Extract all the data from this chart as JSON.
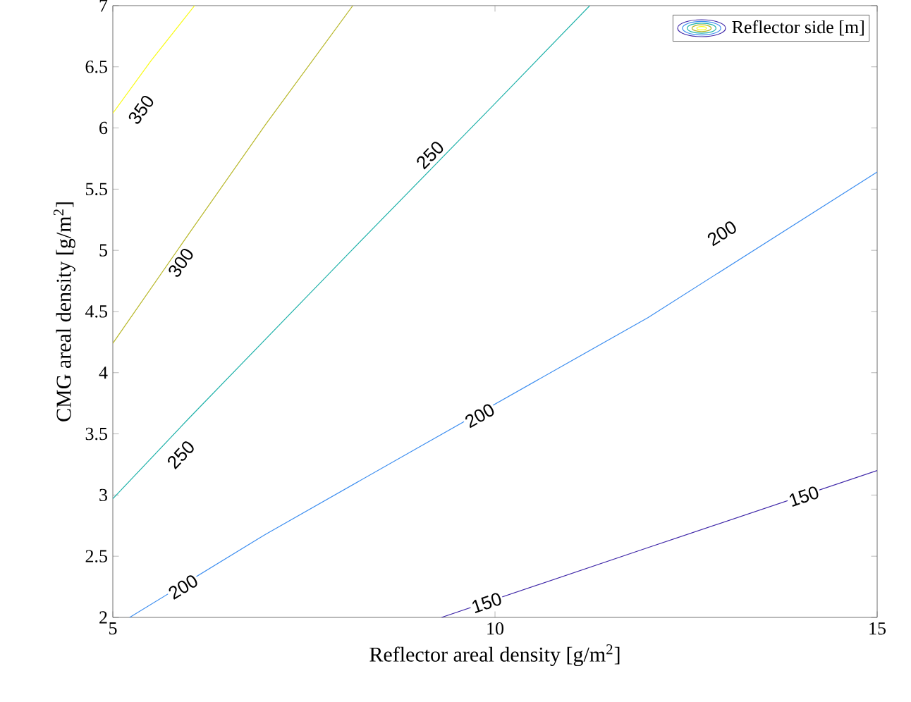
{
  "chart_data": {
    "type": "line",
    "xlabel": "Reflector areal density [g/m$^{2}$]",
    "ylabel": "CMG areal density [g/m$^{2}$]",
    "legend_title": "Reflector side [m]",
    "grid": false,
    "xlim": [
      5,
      15
    ],
    "xticks": [
      5,
      10,
      15
    ],
    "ylim": [
      2,
      7
    ],
    "yticks": [
      2,
      2.5,
      3,
      3.5,
      4,
      4.5,
      5,
      5.5,
      6,
      6.5,
      7
    ],
    "series": [
      {
        "color": "#3e26a8",
        "x": [
          9.3,
          12,
          15
        ],
        "values": [
          2,
          2.57,
          3.2
        ]
      },
      {
        "color": "#3d8ef0",
        "x": [
          5.22,
          7,
          9,
          12,
          15
        ],
        "values": [
          2,
          2.68,
          3.39,
          4.45,
          5.64
        ]
      },
      {
        "color": "#20b2aa",
        "x": [
          5,
          6,
          8,
          10,
          11.24
        ],
        "values": [
          2.97,
          3.63,
          4.92,
          6.2,
          7
        ]
      },
      {
        "color": "#b8b82a",
        "x": [
          5,
          6,
          7,
          8.14
        ],
        "values": [
          4.24,
          5.14,
          6.03,
          7
        ]
      },
      {
        "color": "#f9fb15",
        "x": [
          5,
          5.5,
          6.07
        ],
        "values": [
          6.12,
          6.55,
          7
        ]
      }
    ],
    "annotations": [
      {
        "text": "350",
        "x": 5.37,
        "y": 6.15
      },
      {
        "text": "300",
        "x": 5.89,
        "y": 4.9
      },
      {
        "text": "250",
        "x": 5.89,
        "y": 3.33
      },
      {
        "text": "250",
        "x": 9.15,
        "y": 5.78
      },
      {
        "text": "200",
        "x": 5.92,
        "y": 2.25
      },
      {
        "text": "200",
        "x": 9.8,
        "y": 3.65
      },
      {
        "text": "200",
        "x": 12.97,
        "y": 5.14
      },
      {
        "text": "150",
        "x": 9.89,
        "y": 2.12
      },
      {
        "text": "150",
        "x": 14.04,
        "y": 2.99
      }
    ]
  }
}
